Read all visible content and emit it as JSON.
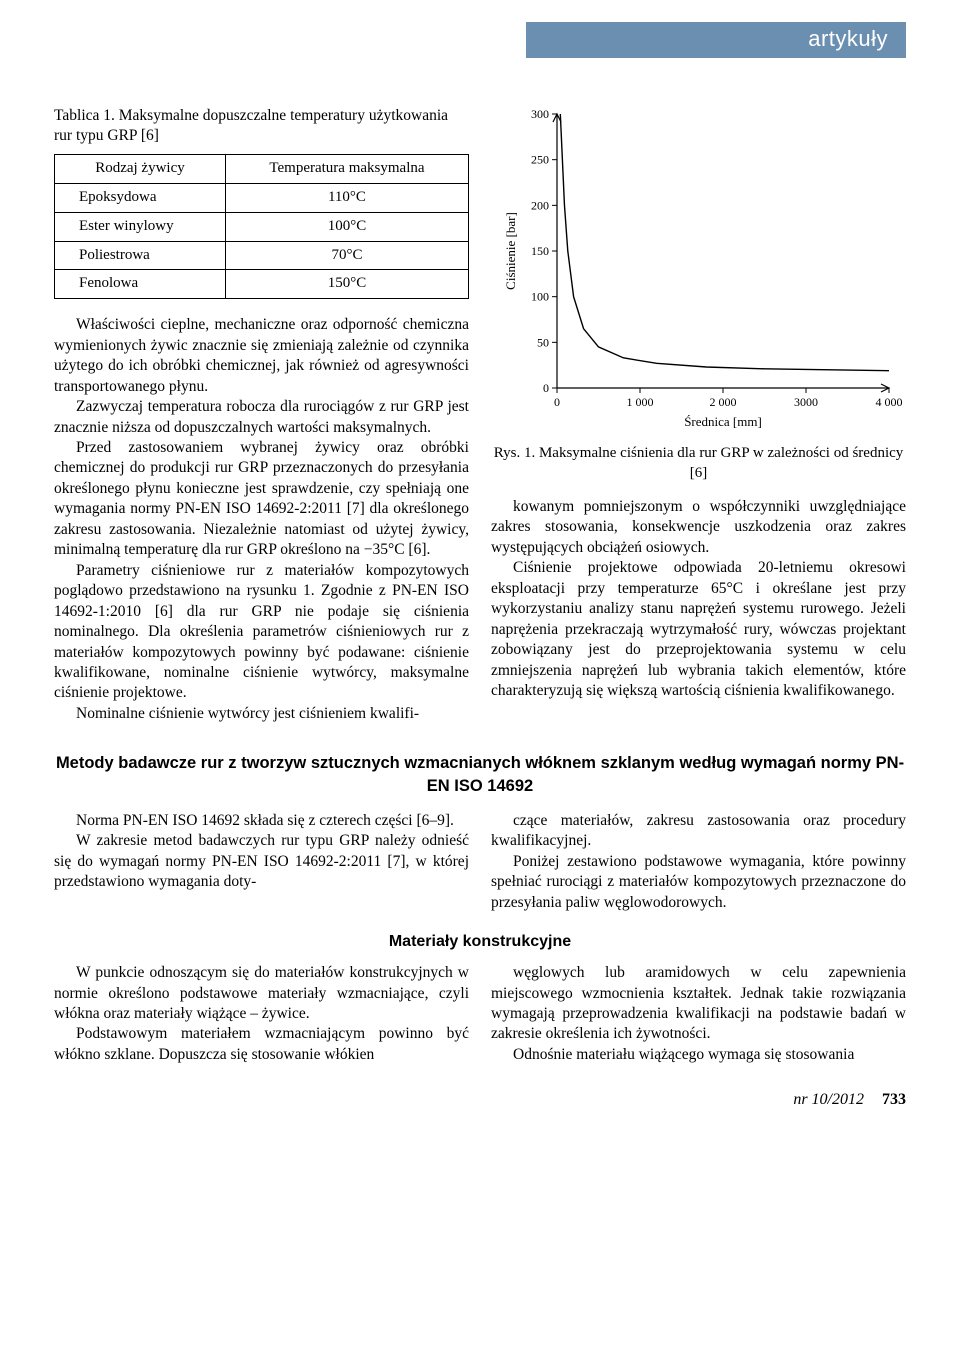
{
  "header": {
    "band_label": "artykuły",
    "band_color": "#6b8fb0",
    "text_color": "#ffffff"
  },
  "table1": {
    "caption": "Tablica 1. Maksymalne dopuszczalne temperatury użytkowania rur typu GRP [6]",
    "col_headers": [
      "Rodzaj żywicy",
      "Temperatura maksymalna"
    ],
    "rows": [
      {
        "label": "Epoksydowa",
        "value": "110°C"
      },
      {
        "label": "Ester winylowy",
        "value": "100°C"
      },
      {
        "label": "Poliestrowa",
        "value": "70°C"
      },
      {
        "label": "Fenolowa",
        "value": "150°C"
      }
    ]
  },
  "left_paragraphs": [
    "Właściwości cieplne, mechaniczne oraz odporność chemiczna wymienionych żywic znacznie się zmieniają zależnie od czynnika użytego do ich obróbki chemicznej, jak również od agresywności transportowanego płynu.",
    "Zazwyczaj temperatura robocza dla rurociągów z rur GRP jest znacznie niższa od dopuszczalnych wartości maksymalnych.",
    "Przed zastosowaniem wybranej żywicy oraz obróbki chemicznej do produkcji rur GRP przeznaczonych do przesyłania określonego płynu konieczne jest sprawdzenie, czy spełniają one wymagania normy PN-EN ISO 14692-2:2011 [7] dla określonego zakresu zastosowania. Niezależnie natomiast od użytej żywicy, minimalną temperaturę dla rur GRP określono na −35°C [6].",
    "Parametry ciśnieniowe rur z materiałów kompozytowych poglądowo przedstawiono na rysunku 1. Zgodnie z PN-EN ISO 14692-1:2010 [6] dla rur GRP nie podaje się ciśnienia nominalnego. Dla określenia parametrów ciśnieniowych rur z materiałów kompozytowych powinny być podawane: ciśnienie kwalifikowane, nominalne ciśnienie wytwórcy, maksymalne ciśnienie projektowe.",
    "Nominalne ciśnienie wytwórcy jest ciśnieniem kwalifi-"
  ],
  "chart": {
    "type": "line",
    "title": "",
    "xlabel": "Średnica [mm]",
    "ylabel": "Ciśnienie [bar]",
    "label_fontsize": 13,
    "tick_fontsize": 12,
    "xlim": [
      0,
      4000
    ],
    "ylim": [
      0,
      300
    ],
    "xticks": [
      0,
      1000,
      2000,
      3000,
      4000
    ],
    "xtick_labels": [
      "0",
      "1 000",
      "2 000",
      "3000",
      "4 000"
    ],
    "yticks": [
      0,
      50,
      100,
      150,
      200,
      250,
      300
    ],
    "ytick_labels": [
      "0",
      "50",
      "100",
      "150",
      "200",
      "250",
      "300"
    ],
    "line_color": "#000000",
    "axis_color": "#000000",
    "background_color": "#ffffff",
    "line_width": 1.4,
    "series": [
      {
        "x": 40,
        "y": 300
      },
      {
        "x": 60,
        "y": 260
      },
      {
        "x": 90,
        "y": 200
      },
      {
        "x": 130,
        "y": 150
      },
      {
        "x": 200,
        "y": 100
      },
      {
        "x": 320,
        "y": 65
      },
      {
        "x": 500,
        "y": 45
      },
      {
        "x": 800,
        "y": 33
      },
      {
        "x": 1200,
        "y": 27
      },
      {
        "x": 1800,
        "y": 23
      },
      {
        "x": 2500,
        "y": 21
      },
      {
        "x": 3200,
        "y": 20
      },
      {
        "x": 4000,
        "y": 19
      }
    ]
  },
  "fig1_caption": "Rys. 1. Maksymalne ciśnienia dla rur GRP w zależności od średnicy [6]",
  "right_paragraphs": [
    "kowanym pomniejszonym o współczynniki uwzględniające zakres stosowania, konsekwencje uszkodzenia oraz zakres występujących obciążeń osiowych.",
    "Ciśnienie projektowe odpowiada 20-letniemu okresowi eksploatacji przy temperaturze 65°C i określane jest przy wykorzystaniu analizy stanu naprężeń systemu rurowego. Jeżeli naprężenia przekraczają wytrzymałość rury, wówczas projektant zobowiązany jest do przeprojektowania systemu w celu zmniejszenia naprężeń lub wybrania takich elementów, które charakteryzują się większą wartością ciśnienia kwalifikowanego."
  ],
  "section2": {
    "title": "Metody badawcze rur z tworzyw sztucznych wzmacnianych włóknem szklanym według wymagań normy PN-EN ISO 14692",
    "left": [
      "Norma PN-EN ISO 14692 składa się z czterech części [6–9].",
      "W zakresie metod badawczych rur typu GRP należy odnieść się do wymagań normy PN-EN ISO 14692-2:2011 [7], w której przedstawiono wymagania doty-"
    ],
    "right": [
      "czące materiałów, zakresu zastosowania oraz procedury kwalifikacyjnej.",
      "Poniżej zestawiono podstawowe wymagania, które powinny spełniać rurociągi z materiałów kompozytowych przeznaczone do przesyłania paliw węglowodorowych."
    ]
  },
  "section3": {
    "title": "Materiały konstrukcyjne",
    "left": [
      "W punkcie odnoszącym się do materiałów konstrukcyjnych w normie określono podstawowe materiały wzmacniające, czyli włókna oraz materiały wiążące – żywice.",
      "Podstawowym materiałem wzmacniającym powinno być włókno szklane. Dopuszcza się stosowanie włókien"
    ],
    "right": [
      "węglowych lub aramidowych w celu zapewnienia miejscowego wzmocnienia kształtek. Jednak takie rozwiązania wymagają przeprowadzenia kwalifikacji na podstawie badań w zakresie określenia ich żywotności.",
      "Odnośnie materiału wiążącego wymaga się stosowania"
    ]
  },
  "footer": {
    "issue": "nr 10/2012",
    "page": "733"
  }
}
